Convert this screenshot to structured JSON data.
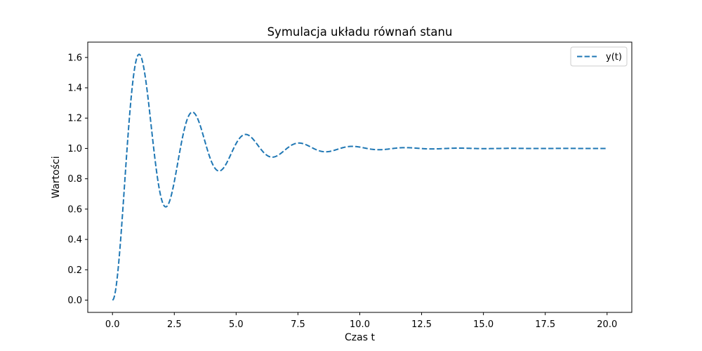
{
  "chart_data": {
    "type": "line",
    "title": "Symulacja układu równań stanu",
    "xlabel": "Czas t",
    "ylabel": "Wartości",
    "xlim": [
      -1.0,
      21.0
    ],
    "ylim": [
      -0.081,
      1.701
    ],
    "xticks": [
      0.0,
      2.5,
      5.0,
      7.5,
      10.0,
      12.5,
      15.0,
      17.5,
      20.0
    ],
    "yticks": [
      0.0,
      0.2,
      0.4,
      0.6,
      0.8,
      1.0,
      1.2,
      1.4,
      1.6
    ],
    "xtick_labels": [
      "0.0",
      "2.5",
      "5.0",
      "7.5",
      "10.0",
      "12.5",
      "15.0",
      "17.5",
      "20.0"
    ],
    "ytick_labels": [
      "0.0",
      "0.2",
      "0.4",
      "0.6",
      "0.8",
      "1.0",
      "1.2",
      "1.4",
      "1.6"
    ],
    "grid": false,
    "legend": {
      "position": "top-right"
    },
    "series": [
      {
        "name": "y(t)",
        "color": "#1f77b4",
        "line_style": "dashed",
        "model": {
          "zeta": 0.15,
          "omega_n": 2.95,
          "t_end": 20.0,
          "steady_state": 1.0
        },
        "key_points": [
          [
            0.0,
            0.0
          ],
          [
            1.07,
            1.62
          ],
          [
            2.15,
            0.7
          ],
          [
            3.25,
            1.16
          ],
          [
            4.3,
            0.915
          ],
          [
            5.4,
            1.045
          ],
          [
            6.45,
            0.975
          ],
          [
            7.5,
            1.015
          ],
          [
            20.0,
            1.0
          ]
        ]
      }
    ]
  }
}
